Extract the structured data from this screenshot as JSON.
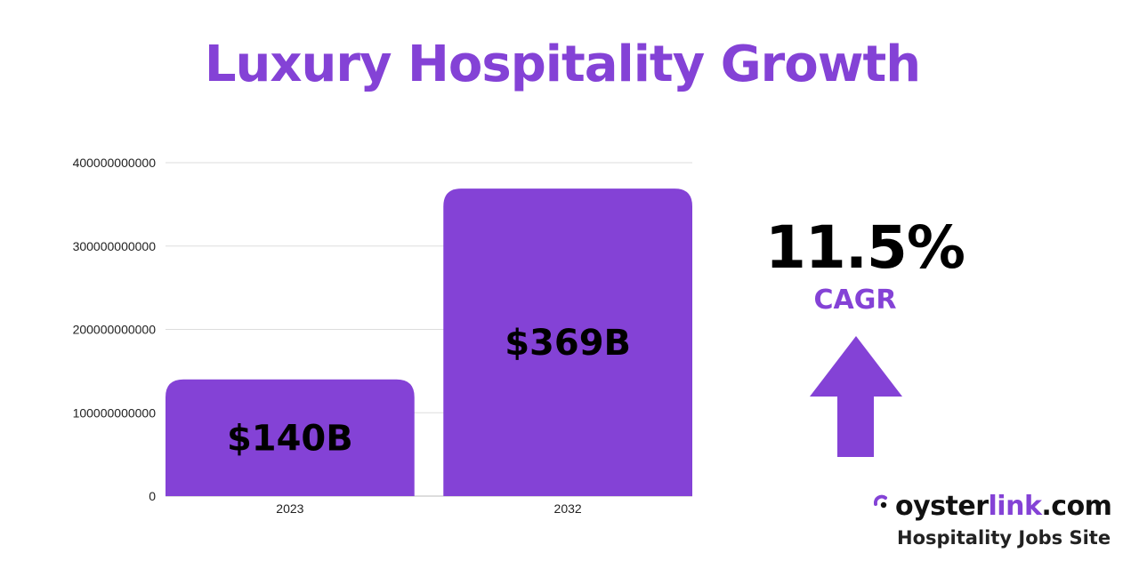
{
  "title": "Luxury Hospitality Growth",
  "colors": {
    "accent": "#8442d6",
    "text": "#000000",
    "gridline": "#dddddd"
  },
  "chart_data": {
    "type": "bar",
    "title": "Luxury Hospitality Growth",
    "categories": [
      "2023",
      "2032"
    ],
    "values": [
      140000000000,
      369000000000
    ],
    "data_labels": [
      "$140B",
      "$369B"
    ],
    "ylim": [
      0,
      400000000000
    ],
    "yticks": [
      0,
      100000000000,
      200000000000,
      300000000000,
      400000000000
    ],
    "ytick_labels": [
      "0",
      "100000000000",
      "200000000000",
      "300000000000",
      "400000000000"
    ],
    "xlabel": "",
    "ylabel": "",
    "grid": true,
    "bar_color": "#8442d6"
  },
  "cagr": {
    "value": "11.5%",
    "label": "CAGR",
    "icon": "up-arrow-icon"
  },
  "brand": {
    "logo_icon": "oysterlink-logo-icon",
    "name_part1": "oyster",
    "name_part2": "link",
    "name_part3": ".com",
    "tagline": "Hospitality Jobs Site"
  }
}
